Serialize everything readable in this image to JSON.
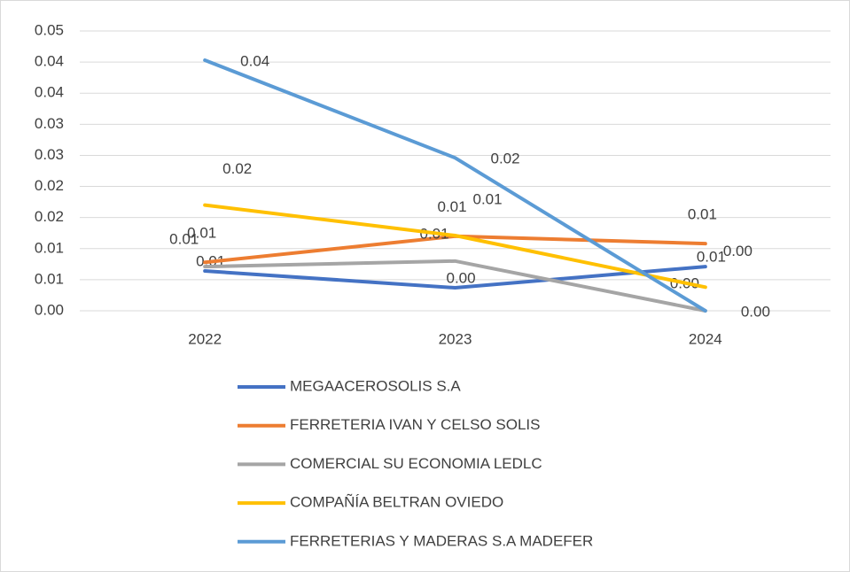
{
  "chart_data": {
    "type": "line",
    "categories": [
      "2022",
      "2023",
      "2024"
    ],
    "ylim": [
      0,
      0.045
    ],
    "yticks": [
      {
        "value": 0,
        "label": "0.00"
      },
      {
        "value": 0.005,
        "label": "0.01"
      },
      {
        "value": 0.01,
        "label": "0.01"
      },
      {
        "value": 0.015,
        "label": "0.02"
      },
      {
        "value": 0.02,
        "label": "0.02"
      },
      {
        "value": 0.025,
        "label": "0.03"
      },
      {
        "value": 0.03,
        "label": "0.03"
      },
      {
        "value": 0.035,
        "label": "0.04"
      },
      {
        "value": 0.04,
        "label": "0.04"
      },
      {
        "value": 0.045,
        "label": "0.05"
      }
    ],
    "grid": true,
    "legend": "bottom",
    "series": [
      {
        "name": "MEGAACEROSOLIS S.A",
        "color": "#4472c4",
        "values": [
          0.0064,
          0.0037,
          0.0071
        ],
        "value_labels": [
          "0.01",
          "0.00",
          "0.01"
        ]
      },
      {
        "name": "FERRETERIA IVAN Y CELSO SOLIS",
        "color": "#ed7d31",
        "values": [
          0.0078,
          0.012,
          0.0108
        ],
        "value_labels": [
          "0.01",
          "0.01",
          "0.01"
        ]
      },
      {
        "name": "COMERCIAL SU ECONOMIA LEDLC",
        "color": "#a5a5a5",
        "values": [
          0.0071,
          0.008,
          0
        ],
        "value_labels": [
          "0.01",
          "0.01",
          "0.00"
        ]
      },
      {
        "name": "COMPAÑÍA BELTRAN OVIEDO",
        "color": "#ffc000",
        "values": [
          0.017,
          0.0121,
          0.0038
        ],
        "value_labels": [
          "0.02",
          "0.01",
          "0.00"
        ]
      },
      {
        "name": "FERRETERIAS Y MADERAS S.A MADEFER",
        "color": "#5b9bd5",
        "values": [
          0.0403,
          0.0246,
          0
        ],
        "value_labels": [
          "0.04",
          "0.02",
          "0.00"
        ]
      }
    ]
  }
}
